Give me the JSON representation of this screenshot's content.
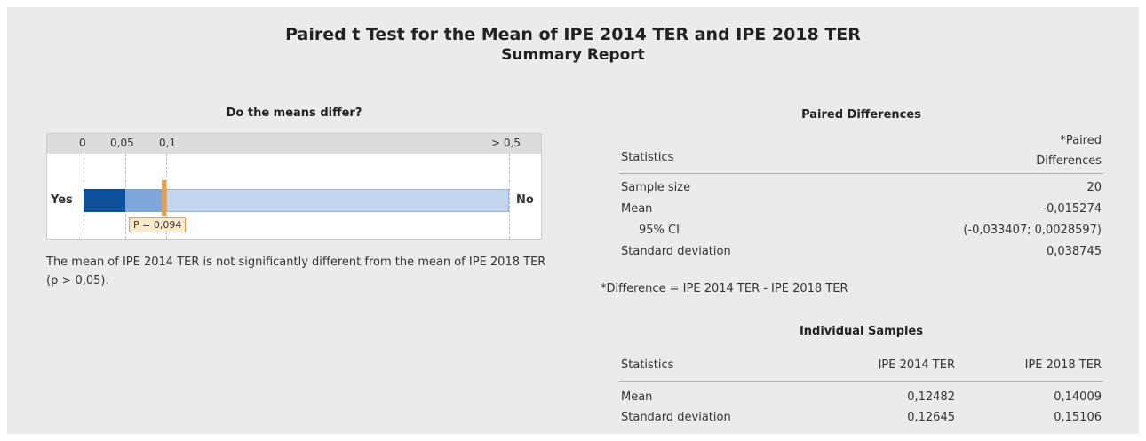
{
  "header": {
    "title": "Paired t Test for the Mean of IPE 2014 TER and IPE 2018 TER",
    "subtitle": "Summary Report"
  },
  "test": {
    "title": "Do the means differ?",
    "scale_labels": [
      "0",
      "0,05",
      "0,1",
      "> 0,5"
    ],
    "yes": "Yes",
    "no": "No",
    "p_label": "P = 0,094",
    "conclusion": "The mean of IPE 2014 TER is not significantly different from the mean of IPE 2018 TER (p > 0,05)."
  },
  "paired": {
    "title": "Paired Differences",
    "columns": [
      "Statistics",
      "*Paired Differences"
    ],
    "rows": [
      [
        "Sample size",
        "20"
      ],
      [
        "Mean",
        "-0,015274"
      ],
      [
        "95% CI",
        "(-0,033407; 0,0028597)"
      ],
      [
        "Standard deviation",
        "0,038745"
      ]
    ],
    "footnote": "*Difference = IPE 2014 TER - IPE 2018 TER"
  },
  "individual": {
    "title": "Individual Samples",
    "columns": [
      "Statistics",
      "IPE 2014 TER",
      "IPE 2018 TER"
    ],
    "rows": [
      [
        "Mean",
        "0,12482",
        "0,14009"
      ],
      [
        "Standard deviation",
        "0,12645",
        "0,15106"
      ]
    ]
  }
}
